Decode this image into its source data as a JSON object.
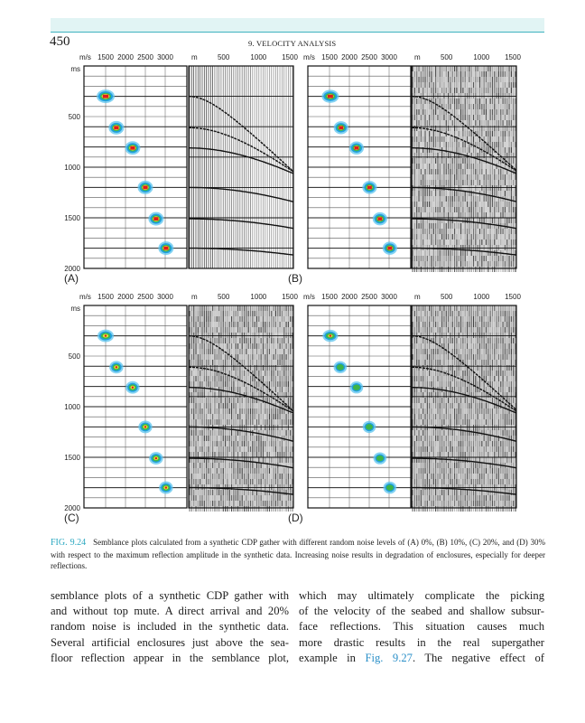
{
  "header": {
    "page_number": "450",
    "running_title": "9. VELOCITY ANALYSIS"
  },
  "figure": {
    "axis": {
      "velocity_unit": "m/s",
      "velocity_ticks": [
        "1500",
        "2000",
        "2500",
        "3000"
      ],
      "offset_unit": "m",
      "offset_ticks": [
        "500",
        "1000",
        "1500"
      ],
      "time_unit": "ms",
      "time_ticks": [
        "500",
        "1000",
        "1500",
        "2000"
      ]
    },
    "panels": [
      {
        "label": "(A)",
        "noise_fraction": 0.0,
        "picks": [
          [
            1500,
            300
          ],
          [
            1770,
            610
          ],
          [
            2180,
            810
          ],
          [
            2500,
            1200
          ],
          [
            2770,
            1510
          ],
          [
            3020,
            1800
          ]
        ]
      },
      {
        "label": "(B)",
        "noise_fraction": 0.1,
        "picks": [
          [
            1520,
            300
          ],
          [
            1790,
            610
          ],
          [
            2180,
            810
          ],
          [
            2510,
            1200
          ],
          [
            2770,
            1510
          ],
          [
            3020,
            1800
          ]
        ]
      },
      {
        "label": "(C)",
        "noise_fraction": 0.2,
        "picks": [
          [
            1500,
            300
          ],
          [
            1770,
            610
          ],
          [
            2180,
            810
          ],
          [
            2500,
            1200
          ],
          [
            2770,
            1510
          ],
          [
            3020,
            1800
          ]
        ]
      },
      {
        "label": "(D)",
        "noise_fraction": 0.3,
        "picks": [
          [
            1520,
            300
          ],
          [
            1770,
            610
          ],
          [
            2180,
            810
          ],
          [
            2500,
            1200
          ],
          [
            2770,
            1510
          ],
          [
            3020,
            1800
          ]
        ]
      }
    ],
    "colors": {
      "outer": "#5cc4ee",
      "mid": "#1f9fe0",
      "green": "#3cb44a",
      "yellow": "#e8e23a",
      "red": "#e01b1b"
    }
  },
  "caption": {
    "fig_number": "FIG. 9.24",
    "text": "Semblance plots calculated from a synthetic CDP gather with different random noise levels of (A) 0%, (B) 10%, (C) 20%, and (D) 30% with respect to the maximum reflection amplitude in the synthetic data. Increasing noise results in degradation of enclosures, especially for deeper reflections."
  },
  "body": {
    "left_lines": [
      "semblance plots of a synthetic CDP gather with",
      "and without top mute. A direct arrival and 20%",
      "random noise is included in the synthetic data.",
      "Several artificial enclosures just above the sea-",
      "floor reflection appear in the semblance plot,"
    ],
    "right_lines": [
      "which may ultimately complicate the picking",
      "of the velocity of the seabed and shallow subsur-",
      "face reflections. This situation causes much",
      "more drastic results in the real supergather"
    ],
    "right_last_prefix": "example in ",
    "right_last_link": "Fig. 9.27",
    "right_last_suffix": ". The negative effect of"
  }
}
